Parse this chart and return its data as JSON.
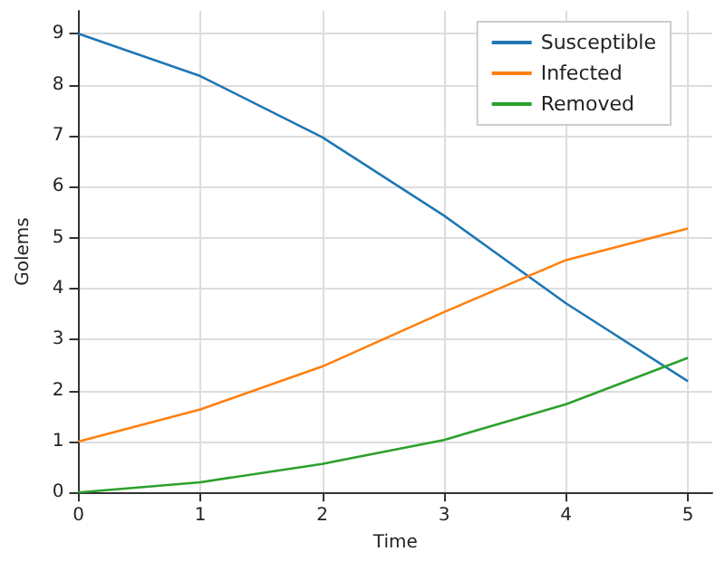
{
  "chart_data": {
    "type": "line",
    "xlabel": "Time",
    "ylabel": "Golems",
    "x": [
      0,
      1,
      2,
      3,
      4,
      5
    ],
    "series": [
      {
        "name": "Susceptible",
        "color": "#1f77b4",
        "values": [
          9,
          8.17,
          6.97,
          5.43,
          3.71,
          2.18
        ]
      },
      {
        "name": "Infected",
        "color": "#ff7f0e",
        "values": [
          1,
          1.63,
          2.47,
          3.54,
          4.56,
          5.18
        ]
      },
      {
        "name": "Removed",
        "color": "#2ca02c",
        "values": [
          0,
          0.2,
          0.56,
          1.03,
          1.73,
          2.64
        ]
      }
    ],
    "xlim": [
      0,
      5.2
    ],
    "xticks": [
      0,
      1,
      2,
      3,
      4,
      5
    ],
    "ylim": [
      0,
      9.45
    ],
    "yticks": [
      0,
      1,
      2,
      3,
      4,
      5,
      6,
      7,
      8,
      9
    ],
    "grid": true,
    "legend": "top right",
    "marker": "none",
    "line_style": "solid"
  }
}
